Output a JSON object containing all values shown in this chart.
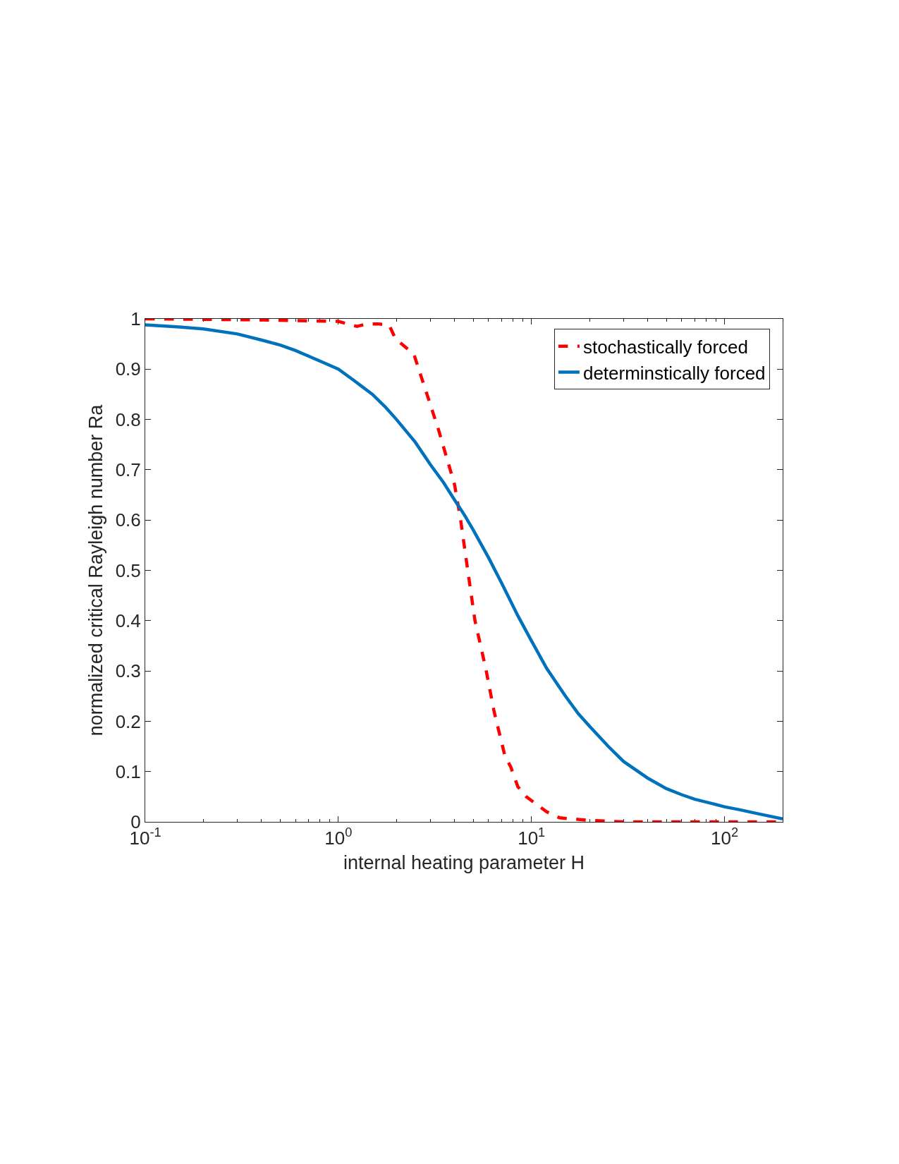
{
  "chart_data": {
    "type": "line",
    "xlabel": "internal heating parameter H",
    "ylabel": "normalized critical Rayleigh number Ra",
    "log": "x",
    "xlim": [
      0.1,
      200
    ],
    "ylim": [
      0,
      1
    ],
    "xticks": [
      {
        "value": 0.1,
        "label": "10$^{-1}$"
      },
      {
        "value": 1,
        "label": "10$^{0}$"
      },
      {
        "value": 10,
        "label": "10$^{1}$"
      },
      {
        "value": 100,
        "label": "10$^{2}$"
      }
    ],
    "yticks": [
      0,
      0.1,
      0.2,
      0.3,
      0.4,
      0.5,
      0.6,
      0.7,
      0.8,
      0.9,
      1
    ],
    "legend": "top right",
    "series": [
      {
        "name": "stochastically forced",
        "color": "#ff0000",
        "line_style": "dashed",
        "x": [
          0.1,
          0.4,
          1.0,
          1.25,
          1.4,
          1.6,
          1.83,
          1.98,
          2.46,
          2.9,
          3.3,
          4.0,
          4.3,
          4.6,
          5.1,
          5.8,
          6.4,
          7.3,
          7.8,
          8.5,
          9.4,
          12,
          14,
          20,
          30,
          200
        ],
        "values": [
          1.0,
          0.998,
          0.995,
          0.985,
          0.99,
          0.99,
          0.988,
          0.96,
          0.93,
          0.846,
          0.78,
          0.67,
          0.6,
          0.52,
          0.4,
          0.305,
          0.22,
          0.13,
          0.11,
          0.07,
          0.05,
          0.02,
          0.008,
          0.003,
          0.0,
          0.0
        ]
      },
      {
        "name": "determinstically forced",
        "color": "#0072bd",
        "line_style": "solid",
        "x": [
          0.1,
          0.15,
          0.2,
          0.3,
          0.4,
          0.5,
          0.6,
          0.7,
          0.85,
          1,
          1.2,
          1.5,
          1.75,
          2,
          2.5,
          3,
          3.5,
          4,
          4.5,
          5,
          6,
          7,
          8.5,
          10,
          12,
          15,
          17.5,
          20,
          25,
          30,
          40,
          50,
          60,
          70,
          85,
          100,
          120,
          150,
          200
        ],
        "values": [
          0.988,
          0.984,
          0.98,
          0.97,
          0.958,
          0.948,
          0.937,
          0.926,
          0.912,
          0.9,
          0.878,
          0.85,
          0.825,
          0.8,
          0.755,
          0.71,
          0.675,
          0.64,
          0.61,
          0.58,
          0.525,
          0.475,
          0.41,
          0.36,
          0.305,
          0.25,
          0.215,
          0.19,
          0.15,
          0.12,
          0.087,
          0.066,
          0.054,
          0.045,
          0.037,
          0.03,
          0.024,
          0.016,
          0.006
        ]
      }
    ]
  }
}
